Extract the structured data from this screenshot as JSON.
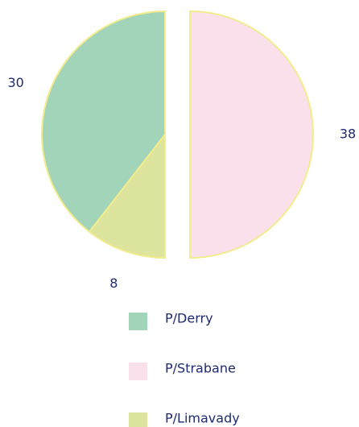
{
  "chart_data": {
    "type": "pie",
    "categories": [
      "P/Derry",
      "P/Strabane",
      "P/Limavady"
    ],
    "values": [
      30,
      38,
      8
    ],
    "colors": [
      "#a2d4b9",
      "#f9e0ea",
      "#dde49d"
    ],
    "explode": [
      false,
      true,
      false
    ],
    "legend": "bottom"
  }
}
